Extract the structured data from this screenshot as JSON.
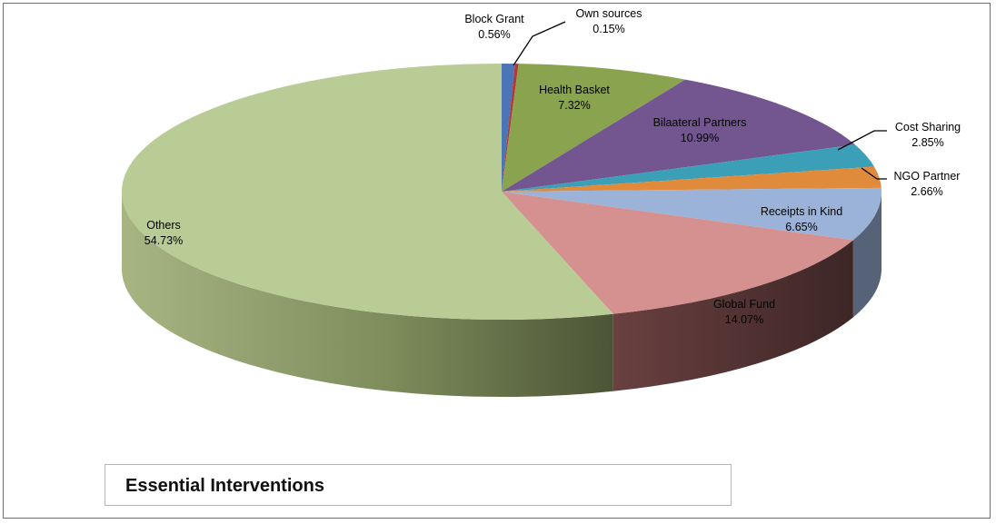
{
  "chart_data": {
    "type": "pie",
    "title": "Essential Interventions",
    "slices": [
      {
        "name": "Block Grant",
        "label": "Block Grant",
        "pct_label": "0.56%",
        "value": 0.56,
        "color": "#4a76b6"
      },
      {
        "name": "Own sources",
        "label": "Own sources",
        "pct_label": "0.15%",
        "value": 0.15,
        "color": "#b03a3a"
      },
      {
        "name": "Health Basket",
        "label": "Health Basket",
        "pct_label": "7.32%",
        "value": 7.32,
        "color": "#89a34e"
      },
      {
        "name": "Bilaateral Partners",
        "label": "Bilaateral Partners",
        "pct_label": "10.99%",
        "value": 10.99,
        "color": "#73558f"
      },
      {
        "name": "Cost Sharing",
        "label": "Cost Sharing",
        "pct_label": "2.85%",
        "value": 2.85,
        "color": "#3b9fb8"
      },
      {
        "name": "NGO Partner",
        "label": "NGO Partner",
        "pct_label": "2.66%",
        "value": 2.66,
        "color": "#e08a3c"
      },
      {
        "name": "Receipts in Kind",
        "label": "Receipts in Kind",
        "pct_label": "6.65%",
        "value": 6.65,
        "color": "#9cb3d9"
      },
      {
        "name": "Global Fund",
        "label": "Global Fund",
        "pct_label": "14.07%",
        "value": 14.07,
        "color": "#d4918f"
      },
      {
        "name": "Others",
        "label": "Others",
        "pct_label": "54.73%",
        "value": 54.73,
        "color": "#b9cc96"
      }
    ],
    "style": "3d-exploded-none",
    "legend": "none"
  }
}
